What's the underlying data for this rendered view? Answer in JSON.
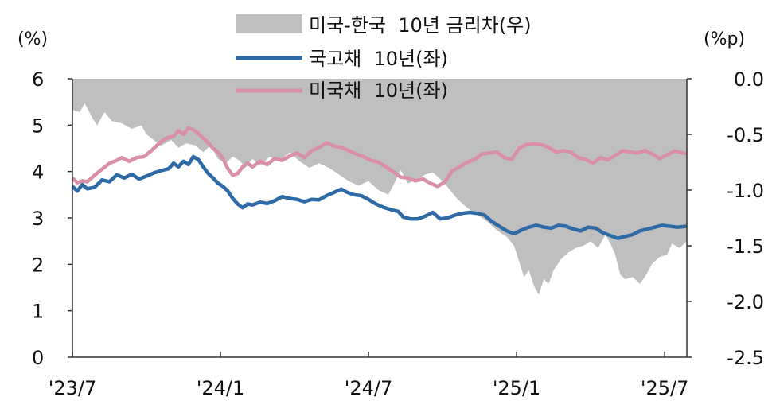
{
  "chart_data": {
    "type": "line",
    "left_unit": "(%)",
    "right_unit": "(%p)",
    "left_axis": {
      "ylim": [
        0,
        6
      ],
      "ticks": [
        "0",
        "1",
        "2",
        "3",
        "4",
        "5",
        "6"
      ]
    },
    "right_axis": {
      "ylim": [
        -2.5,
        0.0
      ],
      "ticks": [
        "0.0",
        "-0.5",
        "-1.0",
        "-1.5",
        "-2.0",
        "-2.5"
      ]
    },
    "x_ticks": [
      {
        "label": "'23/7",
        "t": 0
      },
      {
        "label": "'24/1",
        "t": 6
      },
      {
        "label": "'24/7",
        "t": 12
      },
      {
        "label": "'25/1",
        "t": 18
      },
      {
        "label": "'25/7",
        "t": 24
      }
    ],
    "x_range": [
      0,
      24.9
    ],
    "grid": false,
    "legend_position": "top",
    "series": [
      {
        "name": "미국-한국  10년 금리차(우)",
        "kind": "area",
        "axis": "right",
        "color": "#bfbfbf",
        "points": [
          [
            0,
            -0.28
          ],
          [
            0.3,
            -0.3
          ],
          [
            0.5,
            -0.22
          ],
          [
            0.8,
            -0.35
          ],
          [
            1.0,
            -0.42
          ],
          [
            1.3,
            -0.3
          ],
          [
            1.6,
            -0.38
          ],
          [
            2.0,
            -0.4
          ],
          [
            2.4,
            -0.45
          ],
          [
            2.8,
            -0.42
          ],
          [
            3.0,
            -0.5
          ],
          [
            3.3,
            -0.55
          ],
          [
            3.6,
            -0.6
          ],
          [
            4.0,
            -0.55
          ],
          [
            4.3,
            -0.62
          ],
          [
            4.6,
            -0.58
          ],
          [
            5.0,
            -0.6
          ],
          [
            5.3,
            -0.66
          ],
          [
            5.6,
            -0.6
          ],
          [
            5.9,
            -0.72
          ],
          [
            6.2,
            -0.76
          ],
          [
            6.5,
            -0.7
          ],
          [
            6.8,
            -0.74
          ],
          [
            7.0,
            -0.8
          ],
          [
            7.3,
            -0.72
          ],
          [
            7.6,
            -0.78
          ],
          [
            8.0,
            -0.7
          ],
          [
            8.4,
            -0.74
          ],
          [
            8.8,
            -0.66
          ],
          [
            9.2,
            -0.74
          ],
          [
            9.6,
            -0.8
          ],
          [
            10.0,
            -0.76
          ],
          [
            10.4,
            -0.8
          ],
          [
            10.8,
            -0.86
          ],
          [
            11.2,
            -0.92
          ],
          [
            11.6,
            -0.96
          ],
          [
            12.0,
            -0.92
          ],
          [
            12.4,
            -1.0
          ],
          [
            12.8,
            -1.04
          ],
          [
            13.0,
            -0.96
          ],
          [
            13.3,
            -0.82
          ],
          [
            13.6,
            -0.94
          ],
          [
            14.0,
            -0.9
          ],
          [
            14.3,
            -0.86
          ],
          [
            14.6,
            -0.84
          ],
          [
            15.0,
            -0.92
          ],
          [
            15.3,
            -1.0
          ],
          [
            15.6,
            -1.08
          ],
          [
            16.0,
            -1.16
          ],
          [
            16.4,
            -1.22
          ],
          [
            16.8,
            -1.28
          ],
          [
            17.2,
            -1.36
          ],
          [
            17.6,
            -1.42
          ],
          [
            17.9,
            -1.5
          ],
          [
            18.1,
            -1.64
          ],
          [
            18.3,
            -1.78
          ],
          [
            18.5,
            -1.72
          ],
          [
            18.7,
            -1.86
          ],
          [
            18.9,
            -1.94
          ],
          [
            19.1,
            -1.8
          ],
          [
            19.3,
            -1.84
          ],
          [
            19.5,
            -1.72
          ],
          [
            19.8,
            -1.62
          ],
          [
            20.1,
            -1.56
          ],
          [
            20.4,
            -1.52
          ],
          [
            20.7,
            -1.5
          ],
          [
            21.0,
            -1.46
          ],
          [
            21.3,
            -1.52
          ],
          [
            21.6,
            -1.4
          ],
          [
            21.8,
            -1.48
          ],
          [
            22.0,
            -1.58
          ],
          [
            22.2,
            -1.76
          ],
          [
            22.4,
            -1.8
          ],
          [
            22.7,
            -1.78
          ],
          [
            23.0,
            -1.84
          ],
          [
            23.2,
            -1.78
          ],
          [
            23.5,
            -1.66
          ],
          [
            23.8,
            -1.6
          ],
          [
            24.1,
            -1.58
          ],
          [
            24.3,
            -1.48
          ],
          [
            24.6,
            -1.52
          ],
          [
            24.9,
            -1.46
          ]
        ]
      },
      {
        "name": "국고채  10년(좌)",
        "kind": "line",
        "axis": "left",
        "color": "#2e6aa6",
        "points": [
          [
            0,
            3.68
          ],
          [
            0.2,
            3.58
          ],
          [
            0.4,
            3.72
          ],
          [
            0.6,
            3.63
          ],
          [
            0.9,
            3.66
          ],
          [
            1.2,
            3.82
          ],
          [
            1.5,
            3.78
          ],
          [
            1.8,
            3.93
          ],
          [
            2.1,
            3.86
          ],
          [
            2.4,
            3.94
          ],
          [
            2.7,
            3.84
          ],
          [
            3.0,
            3.9
          ],
          [
            3.3,
            3.97
          ],
          [
            3.6,
            4.02
          ],
          [
            3.9,
            4.06
          ],
          [
            4.1,
            4.18
          ],
          [
            4.3,
            4.1
          ],
          [
            4.5,
            4.22
          ],
          [
            4.7,
            4.15
          ],
          [
            4.9,
            4.32
          ],
          [
            5.1,
            4.26
          ],
          [
            5.3,
            4.1
          ],
          [
            5.5,
            3.96
          ],
          [
            5.7,
            3.86
          ],
          [
            5.9,
            3.75
          ],
          [
            6.1,
            3.68
          ],
          [
            6.3,
            3.58
          ],
          [
            6.5,
            3.42
          ],
          [
            6.7,
            3.3
          ],
          [
            6.9,
            3.22
          ],
          [
            7.1,
            3.3
          ],
          [
            7.3,
            3.28
          ],
          [
            7.6,
            3.34
          ],
          [
            7.9,
            3.31
          ],
          [
            8.2,
            3.37
          ],
          [
            8.5,
            3.46
          ],
          [
            8.8,
            3.42
          ],
          [
            9.1,
            3.4
          ],
          [
            9.4,
            3.35
          ],
          [
            9.7,
            3.4
          ],
          [
            10.0,
            3.39
          ],
          [
            10.3,
            3.48
          ],
          [
            10.6,
            3.55
          ],
          [
            10.9,
            3.62
          ],
          [
            11.1,
            3.56
          ],
          [
            11.4,
            3.5
          ],
          [
            11.7,
            3.48
          ],
          [
            12.0,
            3.4
          ],
          [
            12.3,
            3.3
          ],
          [
            12.6,
            3.23
          ],
          [
            12.9,
            3.18
          ],
          [
            13.2,
            3.14
          ],
          [
            13.4,
            3.02
          ],
          [
            13.7,
            2.98
          ],
          [
            14.0,
            2.98
          ],
          [
            14.3,
            3.04
          ],
          [
            14.6,
            3.12
          ],
          [
            14.9,
            2.98
          ],
          [
            15.2,
            3.0
          ],
          [
            15.5,
            3.06
          ],
          [
            15.8,
            3.1
          ],
          [
            16.1,
            3.12
          ],
          [
            16.4,
            3.1
          ],
          [
            16.7,
            3.06
          ],
          [
            17.0,
            2.92
          ],
          [
            17.3,
            2.82
          ],
          [
            17.6,
            2.72
          ],
          [
            17.9,
            2.66
          ],
          [
            18.2,
            2.74
          ],
          [
            18.5,
            2.8
          ],
          [
            18.8,
            2.84
          ],
          [
            19.1,
            2.8
          ],
          [
            19.4,
            2.78
          ],
          [
            19.7,
            2.84
          ],
          [
            20.0,
            2.82
          ],
          [
            20.3,
            2.76
          ],
          [
            20.6,
            2.72
          ],
          [
            20.9,
            2.8
          ],
          [
            21.2,
            2.78
          ],
          [
            21.5,
            2.68
          ],
          [
            21.8,
            2.62
          ],
          [
            22.1,
            2.56
          ],
          [
            22.4,
            2.6
          ],
          [
            22.7,
            2.64
          ],
          [
            23.0,
            2.72
          ],
          [
            23.3,
            2.76
          ],
          [
            23.6,
            2.8
          ],
          [
            23.9,
            2.84
          ],
          [
            24.2,
            2.82
          ],
          [
            24.5,
            2.8
          ],
          [
            24.9,
            2.82
          ]
        ]
      },
      {
        "name": "미국채  10년(좌)",
        "kind": "line",
        "axis": "left",
        "color": "#d98fa5",
        "points": [
          [
            0,
            3.86
          ],
          [
            0.2,
            3.76
          ],
          [
            0.4,
            3.8
          ],
          [
            0.6,
            3.78
          ],
          [
            0.9,
            3.92
          ],
          [
            1.2,
            4.05
          ],
          [
            1.5,
            4.18
          ],
          [
            1.8,
            4.24
          ],
          [
            2.0,
            4.3
          ],
          [
            2.3,
            4.22
          ],
          [
            2.6,
            4.3
          ],
          [
            2.9,
            4.32
          ],
          [
            3.2,
            4.45
          ],
          [
            3.5,
            4.6
          ],
          [
            3.8,
            4.72
          ],
          [
            4.1,
            4.76
          ],
          [
            4.3,
            4.88
          ],
          [
            4.5,
            4.8
          ],
          [
            4.7,
            4.94
          ],
          [
            4.9,
            4.9
          ],
          [
            5.1,
            4.82
          ],
          [
            5.3,
            4.72
          ],
          [
            5.5,
            4.62
          ],
          [
            5.7,
            4.5
          ],
          [
            5.9,
            4.42
          ],
          [
            6.1,
            4.28
          ],
          [
            6.3,
            4.06
          ],
          [
            6.5,
            3.92
          ],
          [
            6.7,
            3.96
          ],
          [
            6.9,
            4.1
          ],
          [
            7.1,
            4.18
          ],
          [
            7.3,
            4.1
          ],
          [
            7.6,
            4.22
          ],
          [
            7.9,
            4.15
          ],
          [
            8.2,
            4.28
          ],
          [
            8.5,
            4.24
          ],
          [
            8.8,
            4.33
          ],
          [
            9.1,
            4.4
          ],
          [
            9.4,
            4.3
          ],
          [
            9.7,
            4.45
          ],
          [
            10.0,
            4.52
          ],
          [
            10.3,
            4.62
          ],
          [
            10.6,
            4.55
          ],
          [
            10.9,
            4.52
          ],
          [
            11.2,
            4.45
          ],
          [
            11.5,
            4.38
          ],
          [
            11.8,
            4.32
          ],
          [
            12.1,
            4.24
          ],
          [
            12.4,
            4.2
          ],
          [
            12.7,
            4.1
          ],
          [
            13.0,
            4.0
          ],
          [
            13.3,
            3.88
          ],
          [
            13.6,
            3.86
          ],
          [
            13.9,
            3.8
          ],
          [
            14.2,
            3.84
          ],
          [
            14.5,
            3.75
          ],
          [
            14.8,
            3.68
          ],
          [
            15.1,
            3.78
          ],
          [
            15.4,
            4.02
          ],
          [
            15.7,
            4.1
          ],
          [
            16.0,
            4.2
          ],
          [
            16.3,
            4.26
          ],
          [
            16.6,
            4.38
          ],
          [
            16.9,
            4.4
          ],
          [
            17.2,
            4.42
          ],
          [
            17.5,
            4.3
          ],
          [
            17.8,
            4.26
          ],
          [
            18.1,
            4.5
          ],
          [
            18.4,
            4.58
          ],
          [
            18.7,
            4.6
          ],
          [
            19.0,
            4.58
          ],
          [
            19.3,
            4.52
          ],
          [
            19.6,
            4.42
          ],
          [
            19.9,
            4.45
          ],
          [
            20.2,
            4.42
          ],
          [
            20.5,
            4.3
          ],
          [
            20.8,
            4.26
          ],
          [
            21.1,
            4.18
          ],
          [
            21.4,
            4.3
          ],
          [
            21.7,
            4.25
          ],
          [
            22.0,
            4.35
          ],
          [
            22.3,
            4.45
          ],
          [
            22.6,
            4.42
          ],
          [
            22.9,
            4.4
          ],
          [
            23.2,
            4.45
          ],
          [
            23.5,
            4.38
          ],
          [
            23.8,
            4.28
          ],
          [
            24.1,
            4.36
          ],
          [
            24.4,
            4.44
          ],
          [
            24.6,
            4.42
          ],
          [
            24.9,
            4.38
          ]
        ]
      }
    ]
  }
}
